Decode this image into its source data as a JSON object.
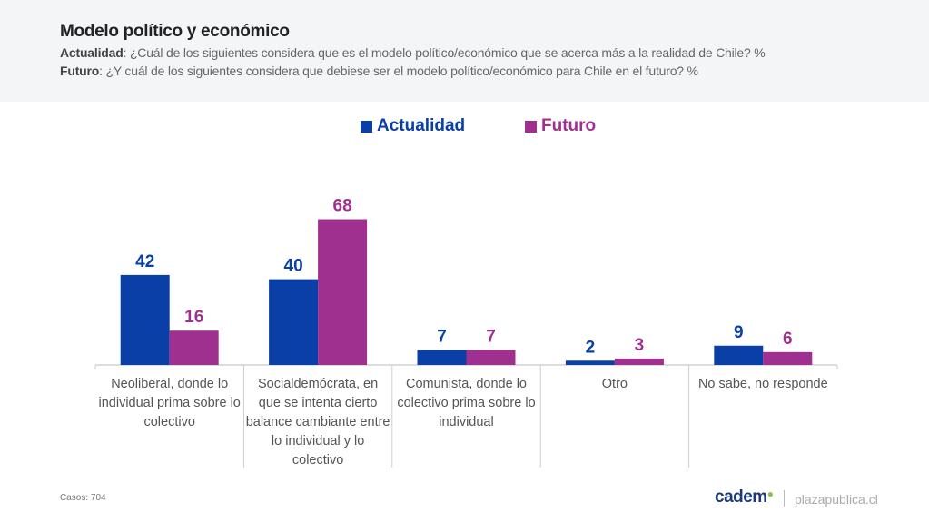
{
  "header": {
    "title": "Modelo político y económico",
    "q1_label": "Actualidad",
    "q1_text": ": ¿Cuál de los siguientes considera que es el modelo político/económico que se acerca más a la realidad de Chile? %",
    "q2_label": "Futuro",
    "q2_text": ": ¿Y cuál de los siguientes considera que debiese ser el modelo político/económico para Chile en el futuro? %"
  },
  "chart_data": {
    "type": "bar",
    "title": "Modelo político y económico",
    "categories": [
      "Neoliberal, donde lo individual prima sobre lo colectivo",
      "Socialdemócrata, en que se intenta cierto balance cambiante entre lo individual y lo colectivo",
      "Comunista, donde lo colectivo prima sobre lo individual",
      "Otro",
      "No sabe, no responde"
    ],
    "series": [
      {
        "name": "Actualidad",
        "color": "#0a3fa8",
        "values": [
          42,
          40,
          7,
          2,
          9
        ]
      },
      {
        "name": "Futuro",
        "color": "#a0308f",
        "values": [
          16,
          68,
          7,
          3,
          6
        ]
      }
    ],
    "ylim": [
      0,
      75
    ],
    "legend": "top-center",
    "grid": false
  },
  "footer": {
    "cases": "Casos: 704",
    "logo": "cadem",
    "site": "plazapublica.cl"
  }
}
